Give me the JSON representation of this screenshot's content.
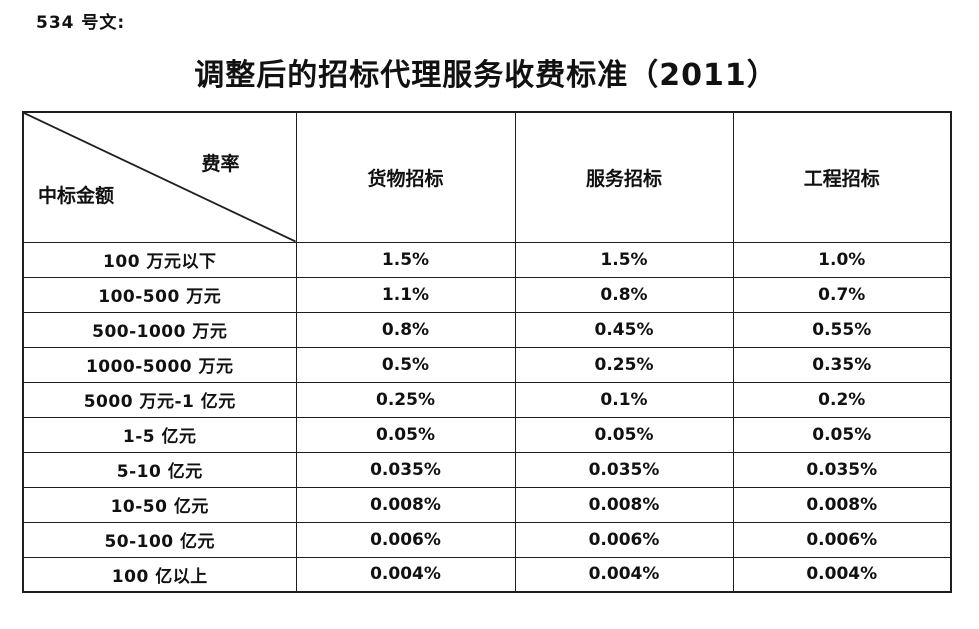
{
  "doc": {
    "label": "534 号文:",
    "title": "调整后的招标代理服务收费标准（2011）"
  },
  "table": {
    "corner": {
      "top_right": "费率",
      "bottom_left": "中标金额"
    },
    "columns": [
      "货物招标",
      "服务招标",
      "工程招标"
    ],
    "rows": [
      {
        "label": "100 万元以下",
        "values": [
          "1.5%",
          "1.5%",
          "1.0%"
        ]
      },
      {
        "label": "100-500 万元",
        "values": [
          "1.1%",
          "0.8%",
          "0.7%"
        ]
      },
      {
        "label": "500-1000 万元",
        "values": [
          "0.8%",
          "0.45%",
          "0.55%"
        ]
      },
      {
        "label": "1000-5000 万元",
        "values": [
          "0.5%",
          "0.25%",
          "0.35%"
        ]
      },
      {
        "label": "5000 万元-1 亿元",
        "values": [
          "0.25%",
          "0.1%",
          "0.2%"
        ]
      },
      {
        "label": "1-5 亿元",
        "values": [
          "0.05%",
          "0.05%",
          "0.05%"
        ]
      },
      {
        "label": "5-10 亿元",
        "values": [
          "0.035%",
          "0.035%",
          "0.035%"
        ]
      },
      {
        "label": "10-50 亿元",
        "values": [
          "0.008%",
          "0.008%",
          "0.008%"
        ]
      },
      {
        "label": "50-100 亿元",
        "values": [
          "0.006%",
          "0.006%",
          "0.006%"
        ]
      },
      {
        "label": "100 亿以上",
        "values": [
          "0.004%",
          "0.004%",
          "0.004%"
        ]
      }
    ],
    "colors": {
      "border": "#1f1f1f",
      "text": "#111111",
      "background": "#ffffff"
    }
  }
}
